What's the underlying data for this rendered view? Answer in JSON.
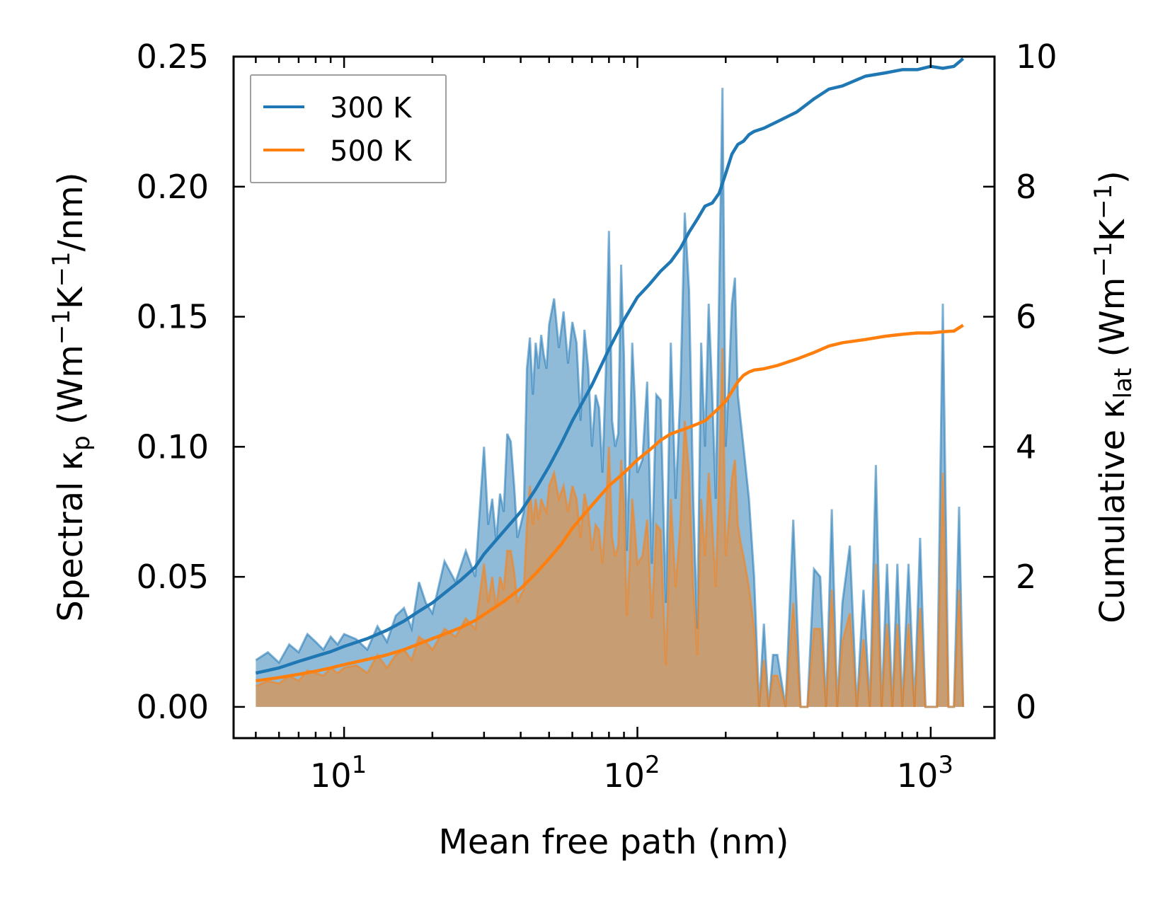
{
  "chart_data": {
    "type": "line",
    "xscale": "log",
    "xlabel": "Mean free path (nm)",
    "ylabel_left": {
      "prefix": "Spectral κ",
      "sub": "p",
      "unit_open": " (Wm",
      "sup1": "−1",
      "mid": "K",
      "sup2": "−1",
      "unit_close": "/nm)"
    },
    "ylabel_right": {
      "prefix": "Cumulative κ",
      "sub": "lat",
      "unit_open": " (Wm",
      "sup1": "−1",
      "mid": "K",
      "sup2": "−1",
      "unit_close": ")"
    },
    "xlim": [
      4.2,
      1650
    ],
    "ylim_left": [
      -0.012,
      0.25
    ],
    "ylim_right": [
      -0.48,
      10.0
    ],
    "x_ticks": [
      {
        "value": 10,
        "base": "10",
        "exp": "1"
      },
      {
        "value": 100,
        "base": "10",
        "exp": "2"
      },
      {
        "value": 1000,
        "base": "10",
        "exp": "3"
      }
    ],
    "y_left_ticks": [
      "0.00",
      "0.05",
      "0.10",
      "0.15",
      "0.20",
      "0.25"
    ],
    "y_right_ticks": [
      "0",
      "2",
      "4",
      "6",
      "8",
      "10"
    ],
    "legend": [
      {
        "label": "300 K",
        "color": "#1f77b4"
      },
      {
        "label": "500 K",
        "color": "#ff7f0e"
      }
    ],
    "series": [
      {
        "name": "300 K spectral",
        "color": "#1f77b4",
        "fill_opacity": 0.5,
        "x": [
          5,
          5.5,
          6,
          6.5,
          7,
          7.5,
          8,
          8.5,
          9,
          9.5,
          10,
          11,
          12,
          13,
          14,
          15,
          16,
          17,
          18,
          19,
          20,
          22,
          24,
          26,
          28,
          30,
          31,
          32,
          33,
          34,
          35,
          36,
          37,
          38,
          39,
          40,
          41,
          42,
          43,
          44,
          45,
          46,
          47,
          48,
          49,
          50,
          52,
          54,
          56,
          58,
          60,
          62,
          64,
          66,
          68,
          70,
          72,
          74,
          76,
          78,
          80,
          82,
          84,
          86,
          88,
          90,
          92,
          94,
          96,
          98,
          100,
          104,
          108,
          112,
          116,
          120,
          125,
          130,
          135,
          140,
          145,
          150,
          155,
          160,
          165,
          170,
          175,
          180,
          185,
          190,
          195,
          200,
          205,
          210,
          215,
          220,
          225,
          230,
          240,
          250,
          260,
          270,
          280,
          290,
          300,
          320,
          340,
          360,
          380,
          400,
          420,
          440,
          460,
          480,
          500,
          530,
          560,
          590,
          620,
          650,
          680,
          710,
          740,
          770,
          800,
          840,
          880,
          920,
          960,
          1000,
          1050,
          1100,
          1150,
          1200,
          1250,
          1290
        ],
        "values": [
          0.018,
          0.021,
          0.017,
          0.024,
          0.021,
          0.028,
          0.025,
          0.022,
          0.027,
          0.024,
          0.028,
          0.026,
          0.022,
          0.031,
          0.025,
          0.035,
          0.038,
          0.03,
          0.048,
          0.04,
          0.036,
          0.056,
          0.048,
          0.06,
          0.05,
          0.1,
          0.07,
          0.08,
          0.064,
          0.082,
          0.075,
          0.105,
          0.102,
          0.085,
          0.065,
          0.07,
          0.075,
          0.13,
          0.142,
          0.12,
          0.14,
          0.13,
          0.143,
          0.135,
          0.13,
          0.147,
          0.157,
          0.138,
          0.152,
          0.132,
          0.148,
          0.14,
          0.11,
          0.145,
          0.13,
          0.1,
          0.12,
          0.115,
          0.09,
          0.128,
          0.183,
          0.11,
          0.1,
          0.105,
          0.17,
          0.135,
          0.06,
          0.095,
          0.14,
          0.118,
          0.09,
          0.095,
          0.125,
          0.055,
          0.12,
          0.118,
          0.04,
          0.14,
          0.08,
          0.12,
          0.19,
          0.16,
          0.08,
          0.03,
          0.14,
          0.1,
          0.155,
          0.12,
          0.08,
          0.16,
          0.238,
          0.1,
          0.125,
          0.155,
          0.165,
          0.12,
          0.11,
          0.1,
          0.08,
          0.05,
          0.0,
          0.032,
          0.0,
          0.02,
          0.02,
          0.0,
          0.072,
          0.0,
          0.0,
          0.053,
          0.05,
          0.0,
          0.076,
          0.0,
          0.04,
          0.062,
          0.0,
          0.045,
          0.0,
          0.093,
          0.0,
          0.055,
          0.0,
          0.055,
          0.0,
          0.055,
          0.0,
          0.065,
          0.0,
          0.0,
          0.0,
          0.155,
          0.0,
          0.0,
          0.077,
          0.0
        ],
        "cumulative_x": [
          5,
          6,
          7,
          8,
          9,
          10,
          12,
          14,
          16,
          18,
          20,
          22,
          25,
          28,
          30,
          35,
          40,
          45,
          50,
          55,
          60,
          70,
          80,
          90,
          100,
          110,
          120,
          130,
          140,
          150,
          160,
          170,
          180,
          190,
          200,
          210,
          220,
          230,
          240,
          250,
          270,
          300,
          350,
          400,
          450,
          500,
          600,
          700,
          800,
          900,
          1000,
          1100,
          1200,
          1290
        ],
        "cumulative": [
          0.52,
          0.6,
          0.7,
          0.78,
          0.85,
          0.93,
          1.05,
          1.18,
          1.32,
          1.47,
          1.6,
          1.75,
          1.95,
          2.15,
          2.35,
          2.7,
          3.0,
          3.35,
          3.7,
          4.05,
          4.4,
          4.95,
          5.5,
          5.95,
          6.3,
          6.5,
          6.7,
          6.85,
          7.05,
          7.3,
          7.5,
          7.7,
          7.75,
          7.9,
          8.2,
          8.5,
          8.65,
          8.7,
          8.8,
          8.85,
          8.9,
          9.0,
          9.15,
          9.35,
          9.5,
          9.55,
          9.7,
          9.75,
          9.8,
          9.8,
          9.85,
          9.82,
          9.85,
          9.97
        ]
      },
      {
        "name": "500 K spectral",
        "color": "#ff7f0e",
        "fill_opacity": 0.5,
        "x": [
          5,
          5.5,
          6,
          6.5,
          7,
          7.5,
          8,
          8.5,
          9,
          9.5,
          10,
          11,
          12,
          13,
          14,
          15,
          16,
          17,
          18,
          19,
          20,
          22,
          24,
          26,
          28,
          30,
          31,
          32,
          33,
          34,
          35,
          36,
          37,
          38,
          39,
          40,
          41,
          42,
          43,
          44,
          45,
          46,
          47,
          48,
          49,
          50,
          52,
          54,
          56,
          58,
          60,
          62,
          64,
          66,
          68,
          70,
          72,
          74,
          76,
          78,
          80,
          82,
          84,
          86,
          88,
          90,
          92,
          94,
          96,
          98,
          100,
          104,
          108,
          112,
          116,
          120,
          125,
          130,
          135,
          140,
          145,
          150,
          155,
          160,
          165,
          170,
          175,
          180,
          185,
          190,
          195,
          200,
          205,
          210,
          215,
          220,
          225,
          230,
          240,
          250,
          260,
          270,
          280,
          290,
          300,
          320,
          340,
          360,
          380,
          400,
          420,
          440,
          460,
          480,
          500,
          530,
          560,
          590,
          620,
          650,
          680,
          710,
          740,
          770,
          800,
          840,
          880,
          920,
          960,
          1000,
          1050,
          1100,
          1150,
          1200,
          1250,
          1290
        ],
        "values": [
          0.008,
          0.01,
          0.009,
          0.012,
          0.01,
          0.014,
          0.013,
          0.012,
          0.015,
          0.013,
          0.015,
          0.016,
          0.013,
          0.02,
          0.015,
          0.02,
          0.022,
          0.018,
          0.027,
          0.025,
          0.022,
          0.03,
          0.027,
          0.034,
          0.03,
          0.055,
          0.04,
          0.05,
          0.038,
          0.05,
          0.045,
          0.06,
          0.06,
          0.052,
          0.04,
          0.043,
          0.045,
          0.07,
          0.085,
          0.07,
          0.08,
          0.072,
          0.08,
          0.077,
          0.075,
          0.085,
          0.09,
          0.08,
          0.085,
          0.075,
          0.085,
          0.08,
          0.065,
          0.082,
          0.075,
          0.06,
          0.07,
          0.068,
          0.055,
          0.075,
          0.1,
          0.065,
          0.058,
          0.062,
          0.095,
          0.078,
          0.035,
          0.055,
          0.08,
          0.068,
          0.055,
          0.058,
          0.072,
          0.034,
          0.07,
          0.068,
          0.016,
          0.08,
          0.046,
          0.07,
          0.11,
          0.09,
          0.046,
          0.02,
          0.08,
          0.058,
          0.09,
          0.07,
          0.046,
          0.09,
          0.138,
          0.058,
          0.072,
          0.088,
          0.095,
          0.07,
          0.063,
          0.058,
          0.046,
          0.03,
          0.0,
          0.018,
          0.0,
          0.012,
          0.012,
          0.0,
          0.04,
          0.0,
          0.0,
          0.03,
          0.03,
          0.0,
          0.045,
          0.0,
          0.025,
          0.036,
          0.0,
          0.026,
          0.0,
          0.055,
          0.0,
          0.032,
          0.0,
          0.032,
          0.0,
          0.032,
          0.0,
          0.038,
          0.0,
          0.0,
          0.0,
          0.09,
          0.0,
          0.0,
          0.045,
          0.0
        ],
        "cumulative_x": [
          5,
          6,
          7,
          8,
          9,
          10,
          12,
          14,
          16,
          18,
          20,
          22,
          25,
          28,
          30,
          35,
          40,
          45,
          50,
          55,
          60,
          70,
          80,
          90,
          100,
          110,
          120,
          130,
          140,
          150,
          160,
          170,
          180,
          190,
          200,
          210,
          220,
          230,
          240,
          250,
          270,
          300,
          350,
          400,
          450,
          500,
          600,
          700,
          800,
          900,
          1000,
          1100,
          1200,
          1290
        ],
        "cumulative": [
          0.4,
          0.45,
          0.5,
          0.55,
          0.6,
          0.65,
          0.73,
          0.8,
          0.88,
          0.97,
          1.05,
          1.12,
          1.22,
          1.33,
          1.42,
          1.62,
          1.82,
          2.05,
          2.28,
          2.5,
          2.75,
          3.1,
          3.4,
          3.6,
          3.8,
          3.95,
          4.1,
          4.2,
          4.25,
          4.3,
          4.35,
          4.4,
          4.5,
          4.6,
          4.7,
          4.85,
          5.0,
          5.1,
          5.15,
          5.18,
          5.2,
          5.25,
          5.35,
          5.45,
          5.55,
          5.6,
          5.65,
          5.7,
          5.73,
          5.75,
          5.75,
          5.77,
          5.78,
          5.87
        ]
      }
    ]
  }
}
